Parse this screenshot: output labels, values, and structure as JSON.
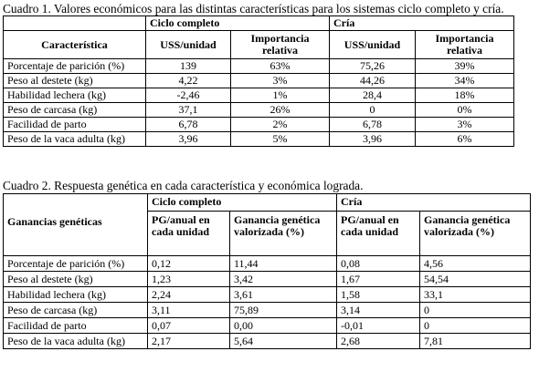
{
  "cuadro1": {
    "caption": "Cuadro 1. Valores económicos para las distintas características para los sistemas ciclo completo y cría.",
    "group1": "Ciclo completo",
    "group2": "Cría",
    "header": [
      "Característica",
      "USS/unidad",
      "Importancia relativa",
      "USS/unidad",
      "Importancia relativa"
    ],
    "rows": [
      [
        "Porcentaje de parición (%)",
        "139",
        "63%",
        "75,26",
        "39%"
      ],
      [
        "Peso al destete (kg)",
        "4,22",
        "3%",
        "44,26",
        "34%"
      ],
      [
        "Habilidad lechera (kg)",
        "-2,46",
        "1%",
        "28,4",
        "18%"
      ],
      [
        "Peso de carcasa (kg)",
        "37,1",
        "26%",
        "0",
        "0%"
      ],
      [
        "Facilidad de parto",
        "6,78",
        "2%",
        "6,78",
        "3%"
      ],
      [
        "Peso de la vaca adulta (kg)",
        "3,96",
        "5%",
        "3,96",
        "6%"
      ]
    ]
  },
  "cuadro2": {
    "caption": "Cuadro 2. Respuesta genética en cada característica y económica lograda.",
    "group1": "Ciclo completo",
    "group2": "Cría",
    "header": [
      "Ganancias genéticas",
      "PG/anual en cada unidad",
      "Ganancia genética valorizada (%)",
      "PG/anual en cada unidad",
      "Ganancia genética valorizada (%)"
    ],
    "rows": [
      [
        "Porcentaje de parición (%)",
        "0,12",
        "11,44",
        "0,08",
        "4,56"
      ],
      [
        "Peso al destete (kg)",
        "1,23",
        "3,42",
        "1,67",
        "54,54"
      ],
      [
        "Habilidad lechera (kg)",
        "2,24",
        "3,61",
        "1,58",
        "33,1"
      ],
      [
        "Peso de carcasa (kg)",
        "3,11",
        "75,89",
        "3,14",
        "0"
      ],
      [
        "Facilidad de parto",
        "0,07",
        "0,00",
        "-0,01",
        "0"
      ],
      [
        "Peso de la vaca adulta (kg)",
        "2,17",
        "5,64",
        "2,68",
        "7,81"
      ]
    ]
  }
}
